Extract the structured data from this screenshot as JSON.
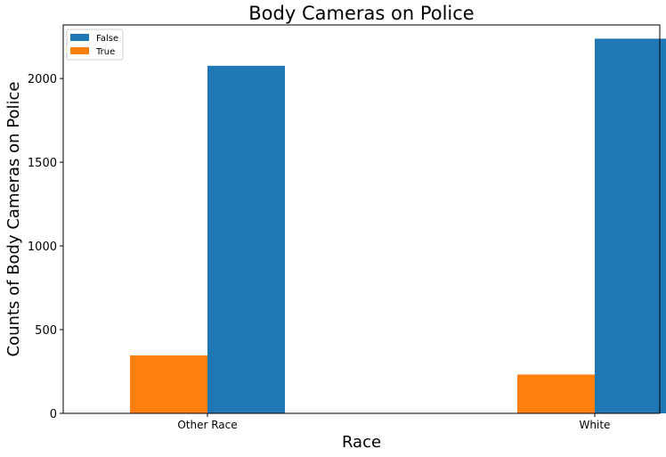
{
  "chart_data": {
    "type": "bar",
    "title": "Body Cameras on Police",
    "xlabel": "Race",
    "ylabel": "Counts of Body Cameras on Police",
    "categories": [
      "Other Race",
      "White"
    ],
    "series": [
      {
        "name": "False",
        "values": [
          2076,
          2238
        ],
        "color": "#1f77b4"
      },
      {
        "name": "True",
        "values": [
          346,
          232
        ],
        "color": "#ff7f0e"
      }
    ],
    "ylim": [
      0,
      2320
    ],
    "yticks": [
      0,
      500,
      1000,
      1500,
      2000
    ],
    "grid": false,
    "legend_position": "top-left"
  }
}
